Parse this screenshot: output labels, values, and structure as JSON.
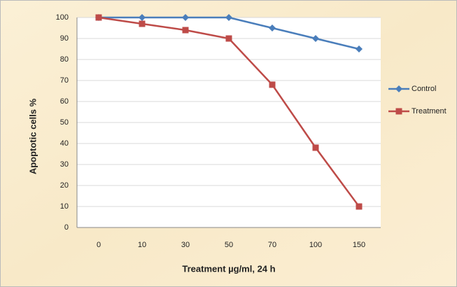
{
  "chart_data": {
    "type": "line",
    "categories": [
      "0",
      "10",
      "30",
      "50",
      "70",
      "100",
      "150"
    ],
    "series": [
      {
        "name": "Control",
        "color": "#4a7ebb",
        "marker": "diamond",
        "values": [
          100,
          100,
          100,
          100,
          95,
          90,
          85
        ]
      },
      {
        "name": "Treatment",
        "color": "#be4b48",
        "marker": "square",
        "values": [
          100,
          97,
          94,
          90,
          68,
          38,
          10
        ]
      }
    ],
    "xlabel": "Treatment µg/ml, 24 h",
    "ylabel": "Apoptotic cells %",
    "ylim": [
      0,
      100
    ],
    "yticks": [
      0,
      10,
      20,
      30,
      40,
      50,
      60,
      70,
      80,
      90,
      100
    ],
    "grid": true,
    "legend": "right"
  }
}
